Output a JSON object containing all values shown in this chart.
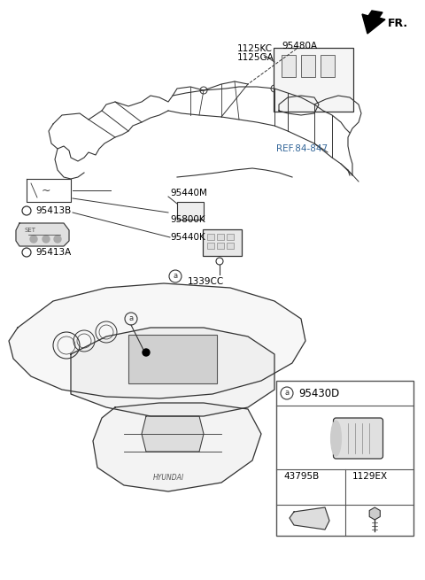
{
  "title": "",
  "bg_color": "#ffffff",
  "border_color": "#000000",
  "labels": {
    "FR": "FR.",
    "part_1125KC": "1125KC",
    "part_1125GA": "1125GA",
    "part_95480A": "95480A",
    "part_REF": "REF.84-847",
    "part_95440M": "95440M",
    "part_95413B": "95413B",
    "part_95800K": "95800K",
    "part_95440K": "95440K",
    "part_95413A": "95413A",
    "part_1339CC": "1339CC",
    "part_95430D": "95430D",
    "part_43795B": "43795B",
    "part_1129EX": "1129EX"
  },
  "line_color": "#333333",
  "text_color": "#000000",
  "ref_color": "#336699",
  "box_line_color": "#555555"
}
